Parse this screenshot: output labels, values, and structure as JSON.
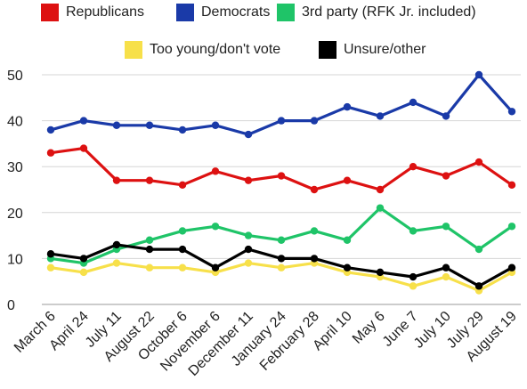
{
  "chart_data": {
    "type": "line",
    "title": "",
    "xlabel": "",
    "ylabel": "",
    "ylim": [
      0,
      50
    ],
    "yticks": [
      "0",
      "10",
      "20",
      "30",
      "40",
      "50"
    ],
    "grid": true,
    "legend_position": "top",
    "categories": [
      "March 6",
      "April 24",
      "July 11",
      "August 22",
      "October 6",
      "November 6",
      "December 11",
      "January 24",
      "February 28",
      "April 10",
      "May 6",
      "June 7",
      "July 10",
      "July 29",
      "August 19"
    ],
    "series": [
      {
        "name": "Republicans",
        "color": "#dd1111",
        "values": [
          33,
          34,
          27,
          27,
          26,
          29,
          27,
          28,
          25,
          27,
          25,
          30,
          28,
          31,
          26
        ]
      },
      {
        "name": "Democrats",
        "color": "#1a3aa8",
        "values": [
          38,
          40,
          39,
          39,
          38,
          39,
          37,
          40,
          40,
          43,
          41,
          44,
          41,
          50,
          42
        ]
      },
      {
        "name": "3rd party (RFK Jr. included)",
        "color": "#1fc468",
        "values": [
          10,
          9,
          12,
          14,
          16,
          17,
          15,
          14,
          16,
          14,
          21,
          16,
          17,
          12,
          17
        ]
      },
      {
        "name": "Too young/don't vote",
        "color": "#f7e04a",
        "values": [
          8,
          7,
          9,
          8,
          8,
          7,
          9,
          8,
          9,
          7,
          6,
          4,
          6,
          3,
          7
        ]
      },
      {
        "name": "Unsure/other",
        "color": "#000000",
        "values": [
          11,
          10,
          13,
          12,
          12,
          8,
          12,
          10,
          10,
          8,
          7,
          6,
          8,
          4,
          8
        ]
      }
    ]
  }
}
